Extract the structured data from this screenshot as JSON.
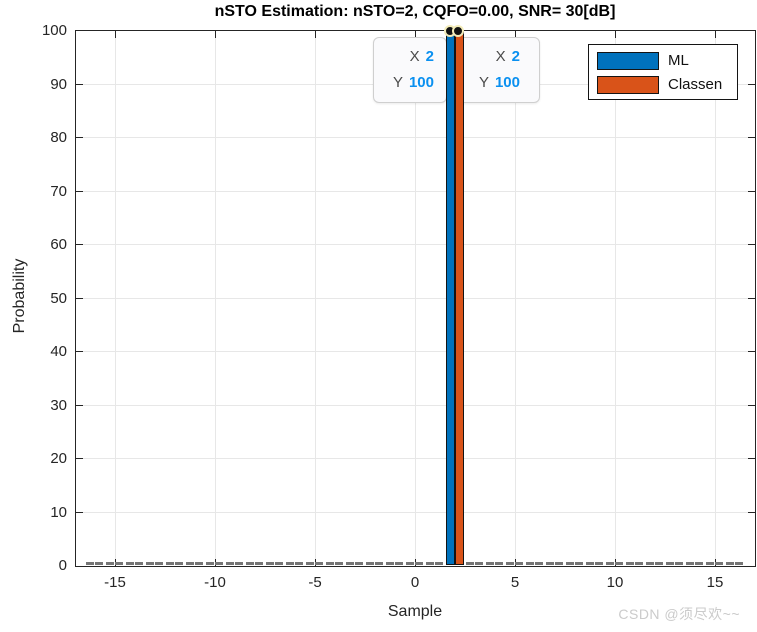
{
  "title": "nSTO Estimation: nSTO=2, CQFO=0.00, SNR= 30[dB]",
  "watermark": "CSDN @须尽欢~~",
  "axes": {
    "x": {
      "label": "Sample",
      "ticks": [
        -15,
        -10,
        -5,
        0,
        5,
        10,
        15
      ],
      "range": [
        -17,
        17
      ]
    },
    "y": {
      "label": "Probability",
      "ticks": [
        0,
        10,
        20,
        30,
        40,
        50,
        60,
        70,
        80,
        90,
        100
      ],
      "range": [
        0,
        100
      ]
    }
  },
  "legend": {
    "position": "northeast",
    "items": [
      {
        "label": "ML",
        "color": "#0072BD"
      },
      {
        "label": "Classen",
        "color": "#D95319"
      }
    ]
  },
  "tooltips": [
    {
      "x_label": "X",
      "x_value": "2",
      "y_label": "Y",
      "y_value": "100"
    },
    {
      "x_label": "X",
      "x_value": "2",
      "y_label": "Y",
      "y_value": "100"
    }
  ],
  "colors": {
    "ml_blue": "#0072BD",
    "classen_orange": "#D95319",
    "grid": "#e7e7e7",
    "axis": "#252525",
    "datatip_value_blue": "#0a90f0",
    "datatip_marker_halo": "#f3ecb9",
    "zero_bar_dashes": "#757575"
  },
  "chart_data": {
    "type": "bar",
    "title": "nSTO Estimation: nSTO=2, CQFO=0.00, SNR= 30[dB]",
    "xlabel": "Sample",
    "ylabel": "Probability",
    "xlim": [
      -17,
      17
    ],
    "ylim": [
      0,
      100
    ],
    "grid": true,
    "legend_position": "northeast",
    "categories": [
      -16,
      -15,
      -14,
      -13,
      -12,
      -11,
      -10,
      -9,
      -8,
      -7,
      -6,
      -5,
      -4,
      -3,
      -2,
      -1,
      0,
      1,
      2,
      3,
      4,
      5,
      6,
      7,
      8,
      9,
      10,
      11,
      12,
      13,
      14,
      15,
      16
    ],
    "series": [
      {
        "name": "ML",
        "color": "#0072BD",
        "values": [
          0,
          0,
          0,
          0,
          0,
          0,
          0,
          0,
          0,
          0,
          0,
          0,
          0,
          0,
          0,
          0,
          0,
          0,
          100,
          0,
          0,
          0,
          0,
          0,
          0,
          0,
          0,
          0,
          0,
          0,
          0,
          0,
          0
        ]
      },
      {
        "name": "Classen",
        "color": "#D95319",
        "values": [
          0,
          0,
          0,
          0,
          0,
          0,
          0,
          0,
          0,
          0,
          0,
          0,
          0,
          0,
          0,
          0,
          0,
          0,
          100,
          0,
          0,
          0,
          0,
          0,
          0,
          0,
          0,
          0,
          0,
          0,
          0,
          0,
          0
        ]
      }
    ],
    "annotations": [
      {
        "type": "datatip",
        "series": "ML",
        "x": 2,
        "y": 100
      },
      {
        "type": "datatip",
        "series": "Classen",
        "x": 2,
        "y": 100
      }
    ]
  }
}
